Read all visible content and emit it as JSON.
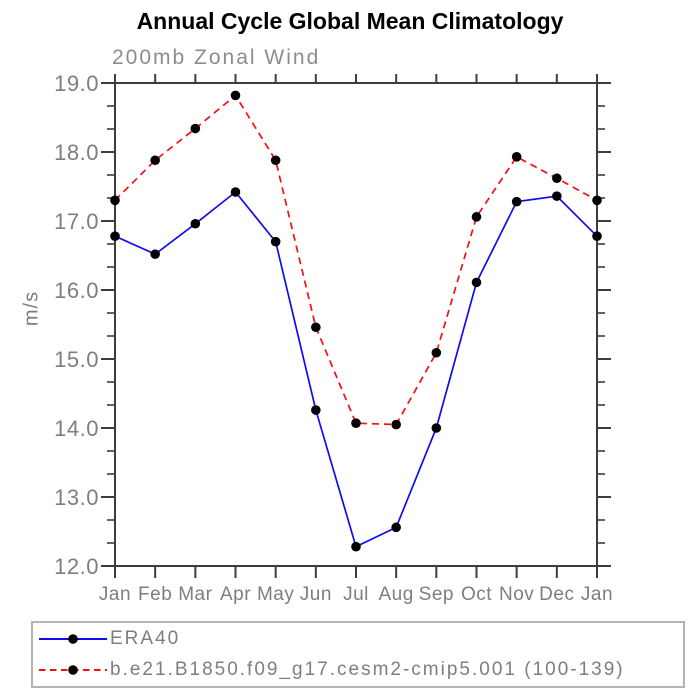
{
  "title": "Annual Cycle Global Mean Climatology",
  "subtitle": "200mb Zonal Wind",
  "chart_data": {
    "type": "line",
    "x_categories": [
      "Jan",
      "Feb",
      "Mar",
      "Apr",
      "May",
      "Jun",
      "Jul",
      "Aug",
      "Sep",
      "Oct",
      "Nov",
      "Dec",
      "Jan"
    ],
    "series": [
      {
        "name": "ERA40",
        "color": "#0d0df0",
        "line_style": "solid",
        "marker": "circle",
        "marker_color": "#000000",
        "values": [
          16.78,
          16.52,
          16.96,
          17.42,
          16.7,
          14.26,
          12.28,
          12.56,
          14.0,
          16.11,
          17.28,
          17.36,
          16.78
        ]
      },
      {
        "name": "b.e21.B1850.f09_g17.cesm2-cmip5.001 (100-139)",
        "color": "#f50f0f",
        "line_style": "dashed",
        "marker": "circle",
        "marker_color": "#000000",
        "values": [
          17.3,
          17.88,
          18.34,
          18.82,
          17.88,
          15.46,
          14.07,
          14.05,
          15.09,
          17.06,
          17.93,
          17.62,
          17.3
        ]
      }
    ],
    "xlabel": "",
    "ylabel": "m/s",
    "ylim": [
      12.0,
      19.0
    ],
    "ytick_interval": 1.0,
    "ytick_labels": [
      "12.0",
      "13.0",
      "14.0",
      "15.0",
      "16.0",
      "17.0",
      "18.0",
      "19.0"
    ],
    "y_minor_divisions": 3,
    "grid": false,
    "legend_position": "bottom-left"
  },
  "colors": {
    "background": "#ffffff",
    "axis": "#3d3d3d",
    "tick_label": "#7e7e7e",
    "title": "#000000",
    "subtitle": "#8d8d8d",
    "legend_border": "#b4b4b4",
    "legend_text": "#7e7e7e"
  }
}
